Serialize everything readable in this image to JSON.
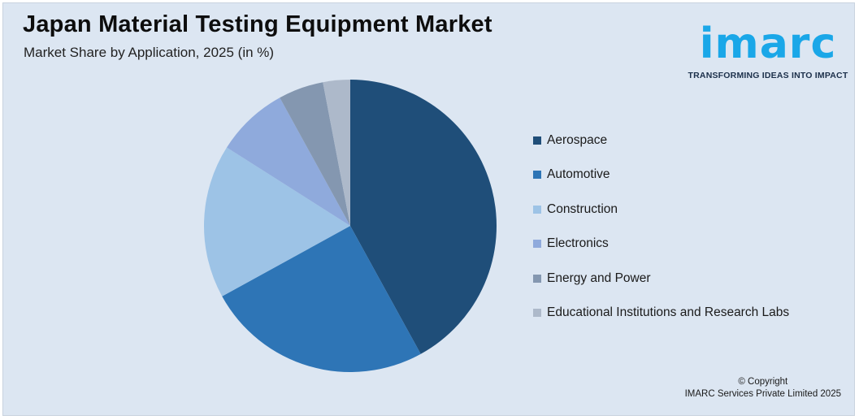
{
  "header": {
    "title": "Japan Material Testing Equipment Market",
    "subtitle": "Market Share by Application, 2025 (in %)"
  },
  "logo": {
    "wordmark": "imarc",
    "tagline": "TRANSFORMING IDEAS INTO IMPACT",
    "color": "#1aa7e8"
  },
  "chart_data": {
    "type": "pie",
    "title": "Japan Material Testing Equipment Market",
    "subtitle": "Market Share by Application, 2025 (in %)",
    "categories": [
      "Aerospace",
      "Automotive",
      "Construction",
      "Electronics",
      "Energy and Power",
      "Educational Institutions and Research Labs"
    ],
    "values": [
      42,
      25,
      17,
      8,
      5,
      3
    ],
    "colors": [
      "#1f4e79",
      "#2e75b6",
      "#9dc3e6",
      "#8faadc",
      "#8497b0",
      "#adb9ca"
    ],
    "legend_position": "right",
    "start": "top, clockwise"
  },
  "footer": {
    "copyright_line1": "© Copyright",
    "copyright_line2": "IMARC Services Private Limited 2025"
  }
}
